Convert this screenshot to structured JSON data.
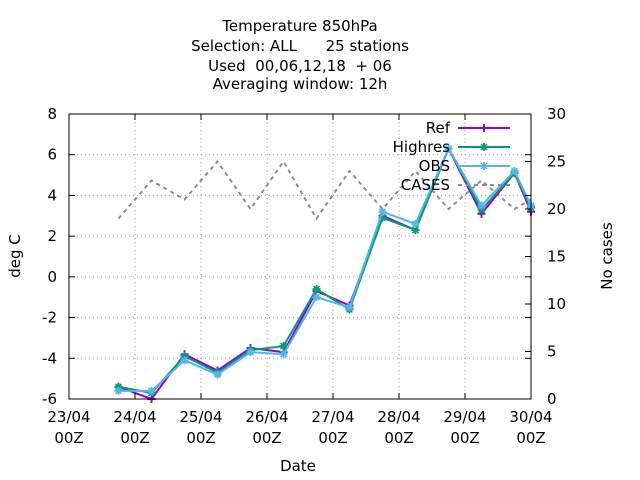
{
  "chart_data": {
    "type": "line",
    "title_lines": [
      "Temperature 850hPa",
      "Selection: ALL      25 stations",
      "Used  00,06,12,18  + 06",
      "Averaging window: 12h"
    ],
    "xlabel": "Date",
    "ylabel": "deg C",
    "y2label": "No cases",
    "x_ticks": [
      {
        "x": 0,
        "line1": "23/04",
        "line2": "00Z"
      },
      {
        "x": 1,
        "line1": "24/04",
        "line2": "00Z"
      },
      {
        "x": 2,
        "line1": "25/04",
        "line2": "00Z"
      },
      {
        "x": 3,
        "line1": "26/04",
        "line2": "00Z"
      },
      {
        "x": 4,
        "line1": "27/04",
        "line2": "00Z"
      },
      {
        "x": 5,
        "line1": "28/04",
        "line2": "00Z"
      },
      {
        "x": 6,
        "line1": "29/04",
        "line2": "00Z"
      },
      {
        "x": 7,
        "line1": "30/04",
        "line2": "00Z"
      }
    ],
    "xlim": [
      0,
      7
    ],
    "ylim": [
      -6,
      8
    ],
    "y_ticks": [
      -6,
      -4,
      -2,
      0,
      2,
      4,
      6,
      8
    ],
    "y2lim": [
      0,
      30
    ],
    "y2_ticks": [
      0,
      5,
      10,
      15,
      20,
      25,
      30
    ],
    "grid": true,
    "legend_position": "top-right",
    "series": [
      {
        "name": "Ref",
        "color": "#9400d3",
        "marker": "plus",
        "axis": "y",
        "x": [
          0.75,
          1.25,
          1.75,
          2.25,
          2.75,
          3.25,
          3.75,
          4.25,
          4.75,
          5.25,
          5.75,
          6.25,
          6.75,
          7.0
        ],
        "y": [
          -5.4,
          -6.0,
          -3.8,
          -4.6,
          -3.5,
          -3.7,
          -0.7,
          -1.4,
          3.0,
          2.3,
          6.3,
          3.1,
          5.1,
          3.2
        ]
      },
      {
        "name": "Highres",
        "color": "#009e73",
        "marker": "star",
        "axis": "y",
        "x": [
          0.75,
          1.25,
          1.75,
          2.25,
          2.75,
          3.25,
          3.75,
          4.25,
          4.75,
          5.25,
          5.75,
          6.25,
          6.75,
          7.0
        ],
        "y": [
          -5.4,
          -5.7,
          -3.9,
          -4.7,
          -3.6,
          -3.4,
          -0.6,
          -1.6,
          2.9,
          2.3,
          6.3,
          3.3,
          5.1,
          3.4
        ]
      },
      {
        "name": "OBS",
        "color": "#56b4e9",
        "marker": "star",
        "axis": "y",
        "x": [
          0.75,
          1.25,
          1.75,
          2.25,
          2.75,
          3.25,
          3.75,
          4.25,
          4.75,
          5.25,
          5.75,
          6.25,
          6.75,
          7.0
        ],
        "y": [
          -5.6,
          -5.6,
          -4.1,
          -4.8,
          -3.7,
          -3.8,
          -1.0,
          -1.5,
          3.2,
          2.6,
          6.3,
          3.5,
          5.2,
          3.5
        ]
      },
      {
        "name": "CASES",
        "color": "#8c8c8c",
        "marker": "none",
        "dashed": true,
        "axis": "y2",
        "x": [
          0.75,
          1.25,
          1.75,
          2.25,
          2.75,
          3.25,
          3.75,
          4.25,
          4.75,
          5.25,
          5.75,
          6.25,
          6.75,
          7.0
        ],
        "y": [
          19,
          23,
          21,
          25,
          20,
          25,
          19,
          24,
          20,
          24,
          20,
          23,
          20,
          21
        ]
      }
    ]
  }
}
